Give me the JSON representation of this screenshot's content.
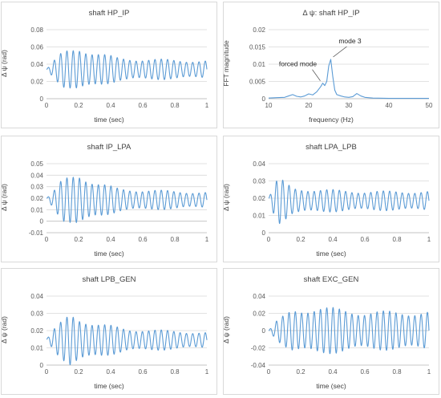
{
  "colors": {
    "series": "#5b9bd5",
    "grid": "#d9d9d9",
    "axis": "#bfbfbf"
  },
  "chart_data": [
    {
      "type": "line",
      "title": "shaft HP_IP",
      "xlabel": "time (sec)",
      "ylabel": "Δ ψ (rad)",
      "xlim": [
        0,
        1
      ],
      "ylim": [
        0,
        0.08
      ],
      "xticks": [
        "0",
        "0.2",
        "0.4",
        "0.6",
        "0.8",
        "1"
      ],
      "yticks": [
        "0",
        "0.02",
        "0.04",
        "0.06",
        "0.08"
      ],
      "signal": {
        "mean": 0.034,
        "initial": 0.034,
        "freq_hz": 25.5,
        "envelope": [
          [
            0,
            0
          ],
          [
            0.04,
            0.008
          ],
          [
            0.1,
            0.018
          ],
          [
            0.2,
            0.024
          ],
          [
            0.3,
            0.018
          ],
          [
            0.45,
            0.012
          ],
          [
            0.6,
            0.011
          ],
          [
            0.8,
            0.01
          ],
          [
            1,
            0.009
          ]
        ]
      }
    },
    {
      "type": "line",
      "title": "Δ ψ: shaft HP_IP",
      "xlabel": "frequency (Hz)",
      "ylabel": "FFT magnitude",
      "xlim": [
        10,
        50
      ],
      "ylim": [
        0,
        0.02
      ],
      "xticks": [
        "10",
        "20",
        "30",
        "40",
        "50"
      ],
      "yticks": [
        "0",
        "0.005",
        "0.01",
        "0.015",
        "0.02"
      ],
      "x": [
        10,
        12,
        14,
        15,
        16,
        17,
        18,
        19,
        20,
        21,
        22,
        23,
        23.5,
        24,
        24.5,
        25,
        25.5,
        26,
        26.5,
        27,
        28,
        29,
        30,
        31,
        32,
        33,
        34,
        36,
        40,
        45,
        50
      ],
      "y": [
        0.0002,
        0.0003,
        0.0004,
        0.0008,
        0.0012,
        0.0007,
        0.0005,
        0.0008,
        0.0014,
        0.0011,
        0.002,
        0.0035,
        0.0045,
        0.0038,
        0.005,
        0.0095,
        0.0114,
        0.0065,
        0.0025,
        0.0012,
        0.0008,
        0.0005,
        0.0004,
        0.0006,
        0.0015,
        0.0008,
        0.0004,
        0.0002,
        0.0001,
        0.0001,
        0.0001
      ],
      "annotations": [
        {
          "text": "forced mode",
          "x": 23.7,
          "y": 0.0045
        },
        {
          "text": "mode 3",
          "x": 25.5,
          "y": 0.0114
        }
      ]
    },
    {
      "type": "line",
      "title": "shaft IP_LPA",
      "xlabel": "time (sec)",
      "ylabel": "Δ ψ (rad)",
      "xlim": [
        0,
        1
      ],
      "ylim": [
        -0.01,
        0.05
      ],
      "xticks": [
        "0",
        "0.2",
        "0.4",
        "0.6",
        "0.8",
        "1"
      ],
      "yticks": [
        "-0.01",
        "0",
        "0.01",
        "0.02",
        "0.03",
        "0.04",
        "0.05"
      ],
      "signal": {
        "mean": 0.0185,
        "initial": 0.02,
        "freq_hz": 25.5,
        "envelope": [
          [
            0,
            0
          ],
          [
            0.04,
            0.006
          ],
          [
            0.1,
            0.016
          ],
          [
            0.2,
            0.022
          ],
          [
            0.3,
            0.014
          ],
          [
            0.45,
            0.009
          ],
          [
            0.6,
            0.008
          ],
          [
            0.8,
            0.007
          ],
          [
            1,
            0.006
          ]
        ]
      }
    },
    {
      "type": "line",
      "title": "shaft LPA_LPB",
      "xlabel": "time (sec)",
      "ylabel": "Δ ψ (rad)",
      "xlim": [
        0,
        1
      ],
      "ylim": [
        0,
        0.04
      ],
      "xticks": [
        "0",
        "0.2",
        "0.4",
        "0.6",
        "0.8",
        "1"
      ],
      "yticks": [
        "0",
        "0.01",
        "0.02",
        "0.03",
        "0.04"
      ],
      "signal": {
        "mean": 0.0185,
        "initial": 0.02,
        "freq_hz": 25.5,
        "envelope": [
          [
            0,
            0
          ],
          [
            0.03,
            0.007
          ],
          [
            0.06,
            0.012
          ],
          [
            0.15,
            0.007
          ],
          [
            0.3,
            0.006
          ],
          [
            0.6,
            0.005
          ],
          [
            1,
            0.005
          ]
        ]
      }
    },
    {
      "type": "line",
      "title": "shaft LPB_GEN",
      "xlabel": "time (sec)",
      "ylabel": "Δ ψ (rad)",
      "xlim": [
        0,
        1
      ],
      "ylim": [
        0,
        0.04
      ],
      "xticks": [
        "0",
        "0.2",
        "0.4",
        "0.6",
        "0.8",
        "1"
      ],
      "yticks": [
        "0",
        "0.01",
        "0.02",
        "0.03",
        "0.04"
      ],
      "signal": {
        "mean": 0.0145,
        "initial": 0.015,
        "freq_hz": 25.5,
        "envelope": [
          [
            0,
            0
          ],
          [
            0.05,
            0.006
          ],
          [
            0.15,
            0.014
          ],
          [
            0.3,
            0.009
          ],
          [
            0.5,
            0.006
          ],
          [
            1,
            0.004
          ]
        ]
      }
    },
    {
      "type": "line",
      "title": "shaft EXC_GEN",
      "xlabel": "time (sec)",
      "ylabel": "Δ ψ (rad)",
      "xlim": [
        0,
        1
      ],
      "ylim": [
        -0.04,
        0.04
      ],
      "xticks": [
        "0",
        "0.2",
        "0.4",
        "0.6",
        "0.8",
        "1"
      ],
      "yticks": [
        "-0.04",
        "-0.02",
        "0",
        "0.02",
        "0.04"
      ],
      "signal": {
        "mean": 0.0,
        "initial": 0.0,
        "freq_hz": 25.5,
        "envelope": [
          [
            0,
            0
          ],
          [
            0.05,
            0.01
          ],
          [
            0.15,
            0.022
          ],
          [
            0.3,
            0.025
          ],
          [
            0.6,
            0.02
          ],
          [
            1,
            0.02
          ]
        ]
      }
    }
  ]
}
